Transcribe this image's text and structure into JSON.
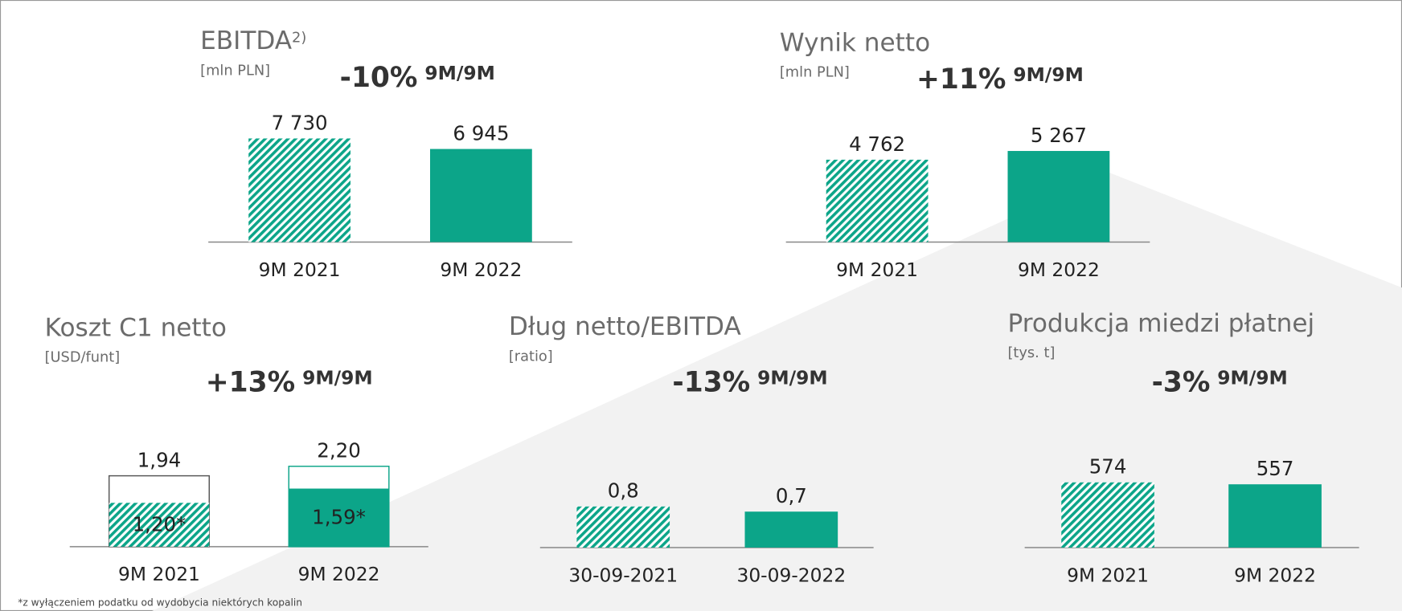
{
  "footnote": "*z wyłączeniem podatku od wydobycia niektórych kopalin",
  "chart_data": [
    {
      "type": "bar",
      "title": "EBITDA",
      "title_sup": "2)",
      "subtitle": "[mln PLN]",
      "change": "-10%",
      "change_period": "9M/9M",
      "categories": [
        "9M 2021",
        "9M 2022"
      ],
      "values": [
        7730,
        6945
      ],
      "value_labels": [
        "7 730",
        "6 945"
      ],
      "color": "#0ca589",
      "fill": [
        "hatch",
        "solid"
      ]
    },
    {
      "type": "bar",
      "title": "Wynik netto",
      "subtitle": "[mln PLN]",
      "change": "+11%",
      "change_period": "9M/9M",
      "categories": [
        "9M 2021",
        "9M 2022"
      ],
      "values": [
        4762,
        5267
      ],
      "value_labels": [
        "4 762",
        "5 267"
      ],
      "color": "#0ca589",
      "fill": [
        "hatch",
        "solid"
      ]
    },
    {
      "type": "bar",
      "title": "Koszt C1 netto",
      "subtitle": "[USD/funt]",
      "change": "+13%",
      "change_period": "9M/9M",
      "categories": [
        "9M 2021",
        "9M 2022"
      ],
      "values": [
        1.94,
        2.2
      ],
      "value_labels": [
        "1,94",
        "2,20"
      ],
      "inner_values": [
        1.2,
        1.59
      ],
      "inner_value_labels": [
        "1,20*",
        "1,59*"
      ],
      "color": "#0ca589",
      "fill": [
        "hatch",
        "solid"
      ]
    },
    {
      "type": "bar",
      "title": "Dług netto/EBITDA",
      "subtitle": "[ratio]",
      "change": "-13%",
      "change_period": "9M/9M",
      "categories": [
        "30-09-2021",
        "30-09-2022"
      ],
      "values": [
        0.8,
        0.7
      ],
      "value_labels": [
        "0,8",
        "0,7"
      ],
      "color": "#0ca589",
      "fill": [
        "hatch",
        "solid"
      ]
    },
    {
      "type": "bar",
      "title": "Produkcja miedzi płatnej",
      "subtitle": "[tys. t]",
      "change": "-3%",
      "change_period": "9M/9M",
      "categories": [
        "9M 2021",
        "9M 2022"
      ],
      "values": [
        574,
        557
      ],
      "color": "#0ca589",
      "fill": [
        "hatch",
        "solid"
      ]
    }
  ]
}
